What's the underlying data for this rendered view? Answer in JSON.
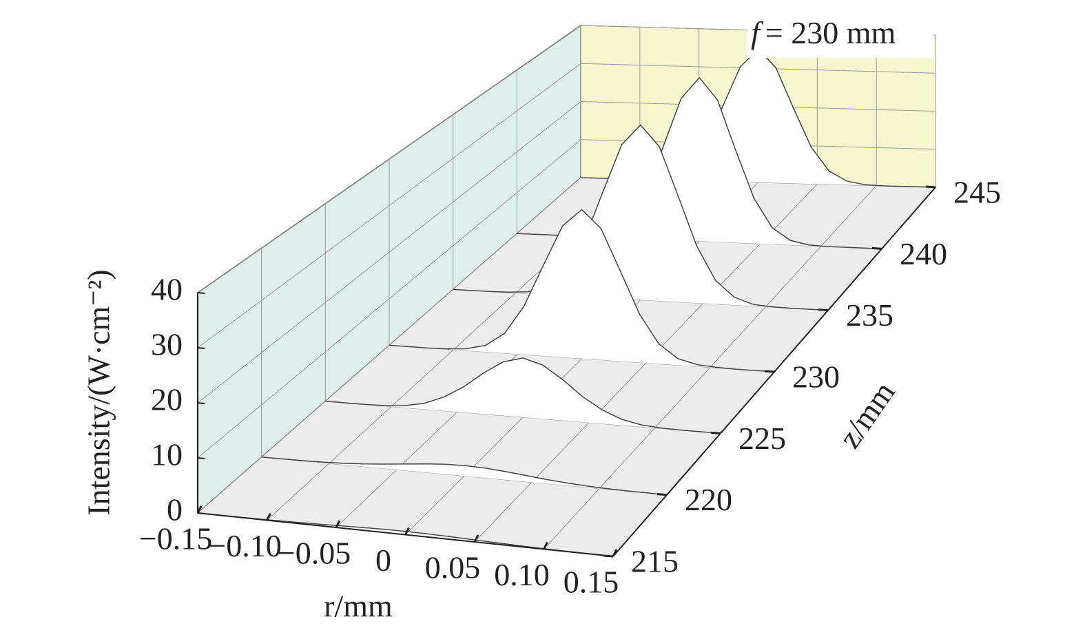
{
  "chart_data": {
    "type": "waterfall3d",
    "annotation": {
      "symbol": "f",
      "text": "= 230 mm"
    },
    "y_label": "Intensity/(W·cm⁻²)",
    "x_label": "r/mm",
    "z_label": "z/mm",
    "x": [
      -0.15,
      -0.135,
      -0.12,
      -0.105,
      -0.09,
      -0.075,
      -0.06,
      -0.045,
      -0.03,
      -0.015,
      0,
      0.015,
      0.03,
      0.045,
      0.06,
      0.075,
      0.09,
      0.105,
      0.12,
      0.135,
      0.15
    ],
    "series": [
      {
        "z": 215,
        "values": [
          0.01,
          0.02,
          0.03,
          0.07,
          0.12,
          0.2,
          0.29,
          0.4,
          0.5,
          0.57,
          0.6,
          0.57,
          0.5,
          0.4,
          0.29,
          0.2,
          0.12,
          0.07,
          0.03,
          0.02,
          0.01
        ]
      },
      {
        "z": 220,
        "values": [
          0.01,
          0.02,
          0.06,
          0.13,
          0.27,
          0.5,
          0.82,
          1.21,
          1.6,
          1.89,
          2,
          1.89,
          1.6,
          1.21,
          0.82,
          0.5,
          0.27,
          0.13,
          0.06,
          0.02,
          0.01
        ]
      },
      {
        "z": 225,
        "values": [
          0,
          0,
          0,
          0.1,
          0.4,
          1.2,
          2.8,
          5.2,
          8.3,
          10.9,
          12,
          10.9,
          8.3,
          5.2,
          2.8,
          1.2,
          0.4,
          0.1,
          0,
          0,
          0
        ]
      },
      {
        "z": 230,
        "values": [
          0,
          0,
          0,
          0.1,
          0.4,
          1.4,
          4.3,
          10.4,
          19.4,
          28.2,
          32,
          28.2,
          19.4,
          10.4,
          4.3,
          1.4,
          0.4,
          0.1,
          0,
          0,
          0
        ]
      },
      {
        "z": 235,
        "values": [
          0,
          0,
          0,
          0.1,
          0.4,
          1.8,
          5.4,
          13,
          24.3,
          35.3,
          40,
          35.3,
          24.3,
          13,
          5.4,
          1.8,
          0.4,
          0.1,
          0,
          0,
          0
        ]
      },
      {
        "z": 240,
        "values": [
          0,
          0,
          0,
          0,
          0.2,
          1.1,
          4,
          11,
          22.5,
          34.7,
          40,
          34.7,
          22.5,
          11,
          4,
          1.1,
          0.2,
          0,
          0,
          0,
          0
        ]
      },
      {
        "z": 245,
        "values": [
          0,
          0,
          0,
          0,
          0.2,
          1,
          3.5,
          9.6,
          19.7,
          30.3,
          35,
          30.3,
          19.7,
          9.6,
          3.5,
          1,
          0.2,
          0,
          0,
          0,
          0
        ]
      }
    ],
    "xlim": [
      -0.15,
      0.15
    ],
    "xticks": [
      {
        "value": -0.15,
        "label": "−0.15"
      },
      {
        "value": -0.1,
        "label": "−0.10"
      },
      {
        "value": -0.05,
        "label": "−0.05"
      },
      0,
      0.05,
      {
        "value": 0.1,
        "label": "0.10"
      },
      0.15
    ],
    "ylim": [
      0,
      40
    ],
    "yticks": [
      0,
      10,
      20,
      30,
      40
    ],
    "zlim": [
      215,
      245
    ],
    "zticks": [
      215,
      220,
      225,
      230,
      235,
      240,
      245
    ],
    "grid": true,
    "line_color": "#444444",
    "fill_color": "#ffffff",
    "floor_color": "#ececec",
    "left_wall_color": "#dff0ec",
    "back_wall_color": "#f6f6cf"
  }
}
